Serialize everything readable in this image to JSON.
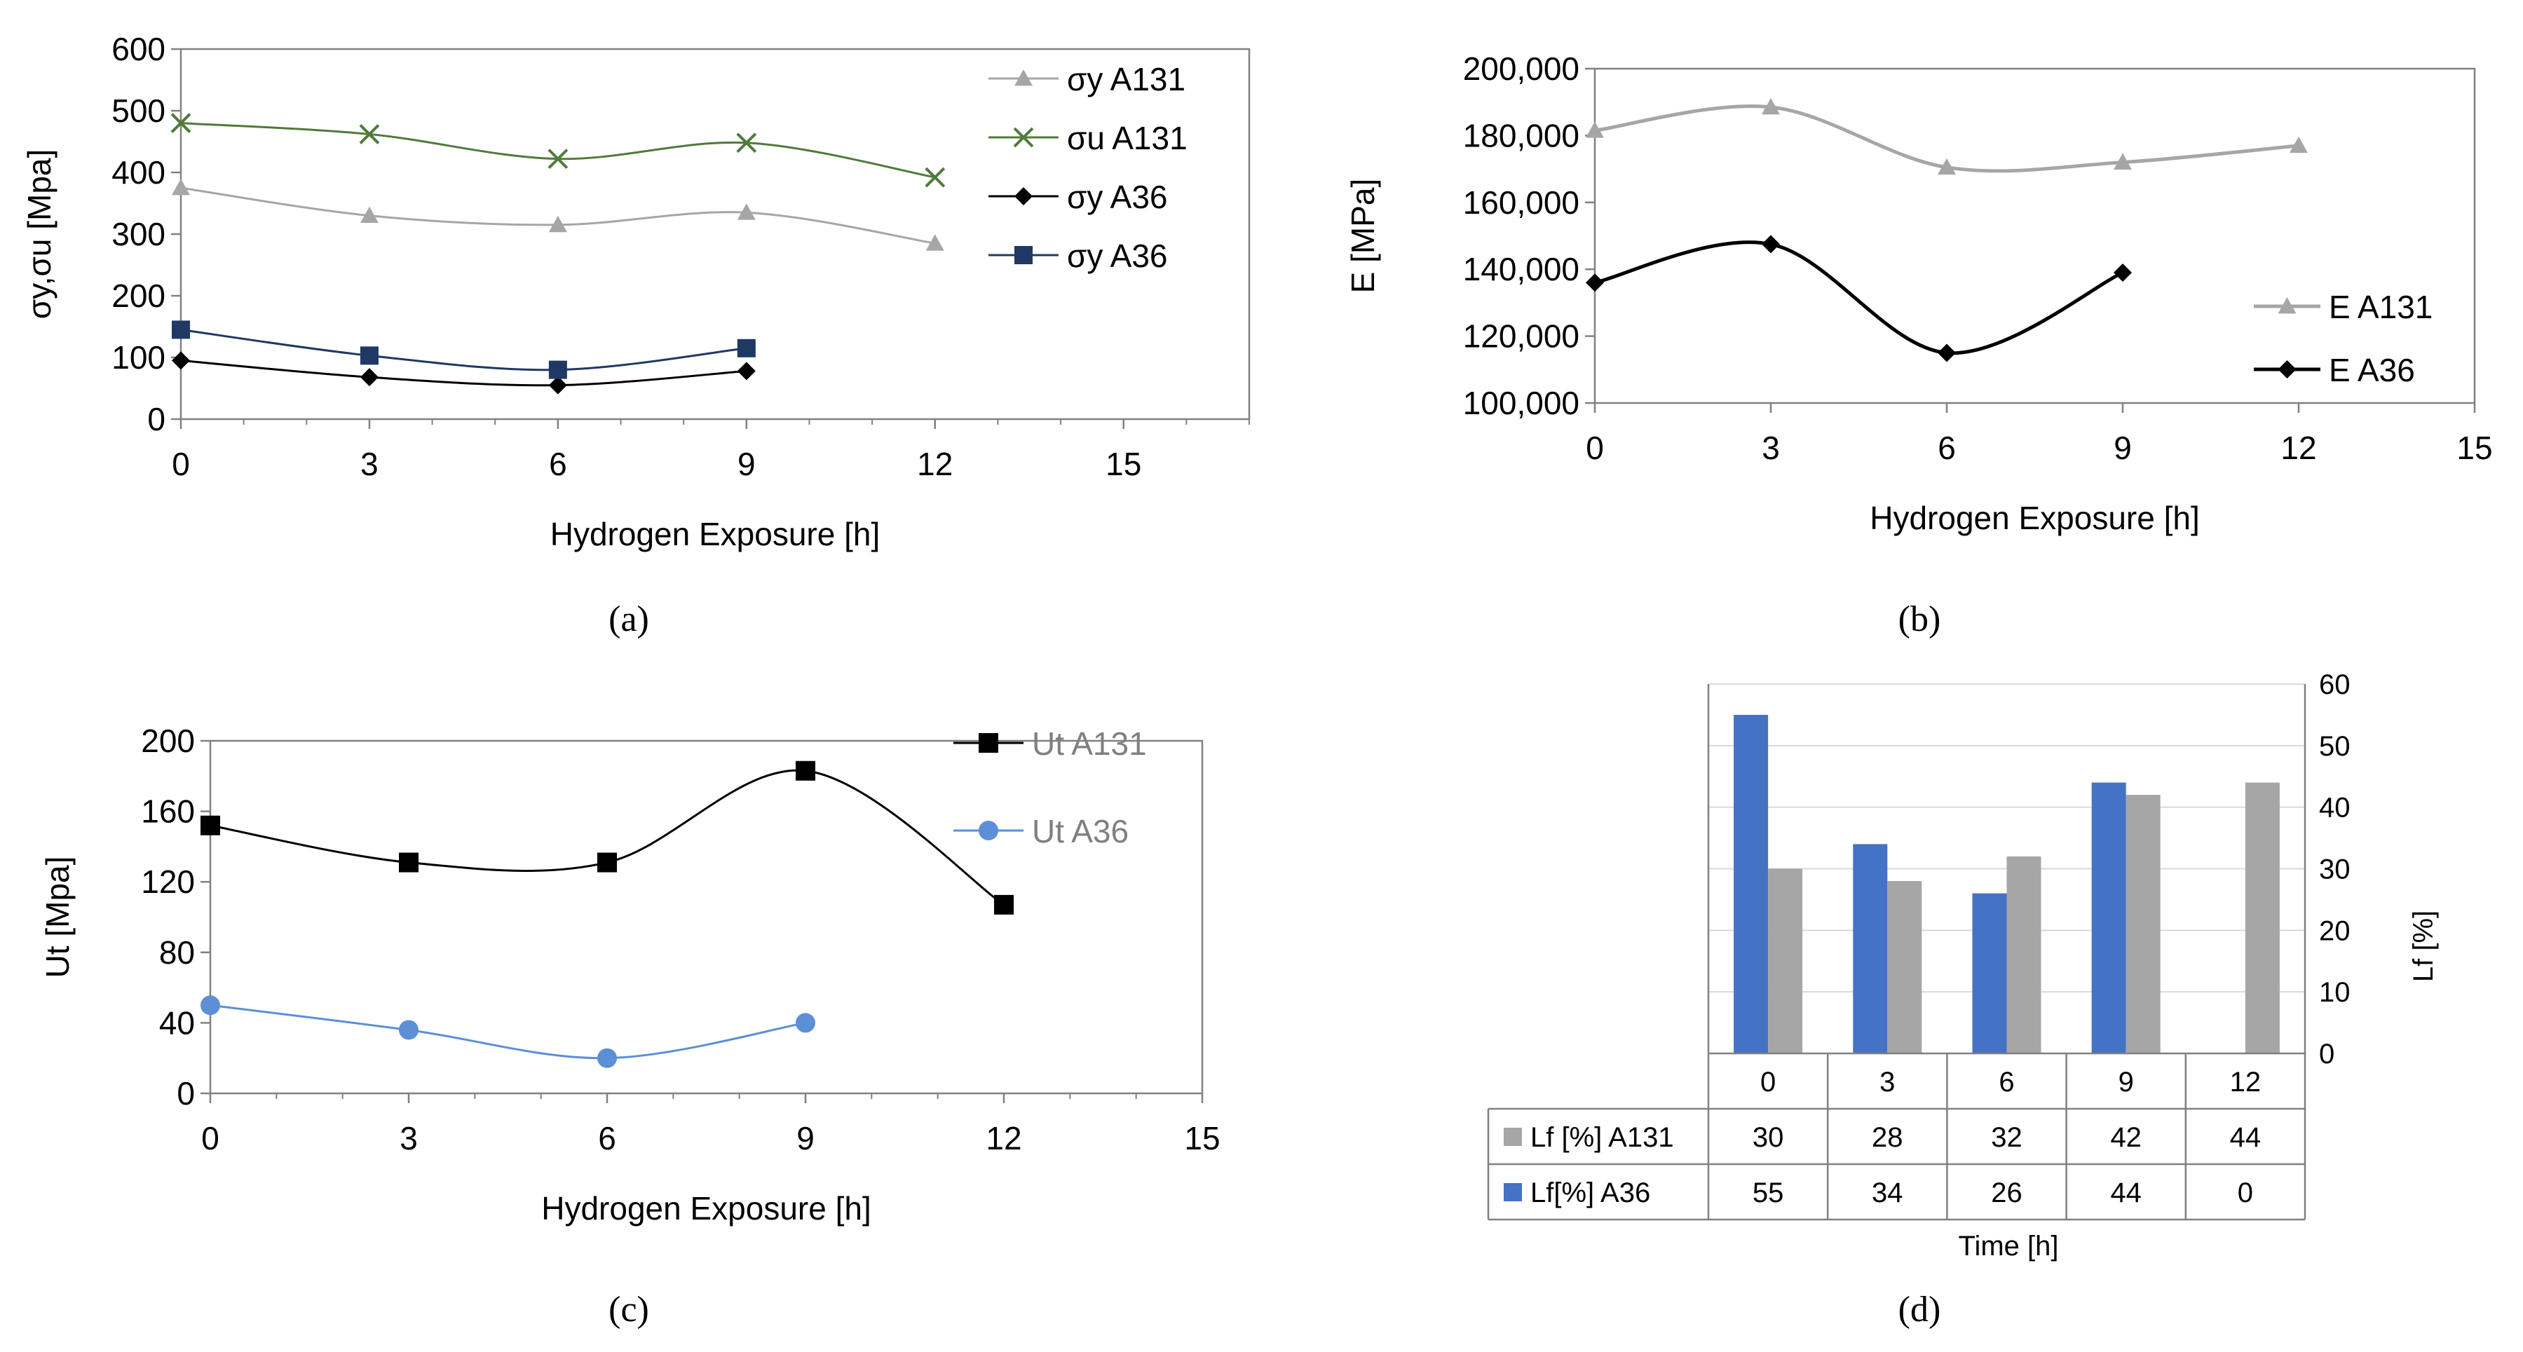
{
  "colors": {
    "light_gray": "#a6a6a6",
    "green": "#507a3a",
    "black": "#000000",
    "navy": "#1f3864",
    "blue": "#4472c4",
    "lblue": "#5b8fd6",
    "axis": "#808080",
    "grid": "#d9d9d9",
    "legend_text": "#808080"
  },
  "panels": {
    "a": "(a)",
    "b": "(b)",
    "c": "(c)",
    "d": "(d)"
  },
  "chart_data": [
    {
      "id": "a",
      "type": "line",
      "title": "",
      "xlabel": "Hydrogen Exposure [h]",
      "ylabel": "σy,σu [Mpa]",
      "xlim": [
        0,
        17
      ],
      "ylim": [
        0,
        600
      ],
      "xticks": [
        0,
        3,
        6,
        9,
        12,
        15
      ],
      "yticks": [
        0,
        100,
        200,
        300,
        400,
        500,
        600
      ],
      "xticklabels": [
        "0",
        "3",
        "6",
        "9",
        "12",
        "15"
      ],
      "yticklabels": [
        "0",
        "100",
        "200",
        "300",
        "400",
        "500",
        "600"
      ],
      "legend_position": "top-right",
      "series": [
        {
          "name": "σy A131",
          "color": "#a6a6a6",
          "marker": "triangle",
          "x": [
            0,
            3,
            6,
            9,
            12
          ],
          "values": [
            375,
            330,
            315,
            335,
            285
          ]
        },
        {
          "name": "σu A131",
          "color": "#507a3a",
          "marker": "x",
          "x": [
            0,
            3,
            6,
            9,
            12
          ],
          "values": [
            480,
            462,
            422,
            448,
            392
          ]
        },
        {
          "name": "σy A36",
          "color": "#000000",
          "marker": "diamond",
          "x": [
            0,
            3,
            6,
            9
          ],
          "values": [
            95,
            68,
            55,
            78
          ]
        },
        {
          "name": "σy A36",
          "color": "#1f3864",
          "marker": "square",
          "x": [
            0,
            3,
            6,
            9
          ],
          "values": [
            145,
            103,
            80,
            115
          ]
        }
      ]
    },
    {
      "id": "b",
      "type": "line",
      "title": "",
      "xlabel": "Hydrogen Exposure [h]",
      "ylabel": "E [MPa]",
      "xlim": [
        0,
        15
      ],
      "ylim": [
        100000,
        200000
      ],
      "xticks": [
        0,
        3,
        6,
        9,
        12,
        15
      ],
      "yticks": [
        100000,
        120000,
        140000,
        160000,
        180000,
        200000
      ],
      "xticklabels": [
        "0",
        "3",
        "6",
        "9",
        "12",
        "15"
      ],
      "yticklabels": [
        "100,000",
        "120,000",
        "140,000",
        "160,000",
        "180,000",
        "200,000"
      ],
      "legend_position": "bottom-right",
      "series": [
        {
          "name": "E A131",
          "color": "#a6a6a6",
          "marker": "triangle",
          "x": [
            0,
            3,
            6,
            9,
            12
          ],
          "values": [
            181500,
            188500,
            170500,
            172000,
            177000
          ]
        },
        {
          "name": "E A36",
          "color": "#000000",
          "marker": "diamond",
          "x": [
            0,
            3,
            6,
            9
          ],
          "values": [
            136000,
            147500,
            115000,
            139000
          ]
        }
      ]
    },
    {
      "id": "c",
      "type": "line",
      "title": "",
      "xlabel": "Hydrogen Exposure [h]",
      "ylabel": "Ut [Mpa]",
      "xlim": [
        0,
        15
      ],
      "ylim": [
        0,
        200
      ],
      "xticks": [
        0,
        3,
        6,
        9,
        12,
        15
      ],
      "yticks": [
        0,
        40,
        80,
        120,
        160,
        200
      ],
      "xticklabels": [
        "0",
        "3",
        "6",
        "9",
        "12",
        "15"
      ],
      "yticklabels": [
        "0",
        "40",
        "80",
        "120",
        "160",
        "200"
      ],
      "legend_position": "top-right",
      "series": [
        {
          "name": "Ut A131",
          "color": "#000000",
          "marker": "square",
          "x": [
            0,
            3,
            6,
            9,
            12
          ],
          "values": [
            152,
            131,
            131,
            183,
            107
          ]
        },
        {
          "name": "Ut A36",
          "color": "#5b8fd6",
          "marker": "circle",
          "x": [
            0,
            3,
            6,
            9
          ],
          "values": [
            50,
            36,
            20,
            40
          ]
        }
      ]
    },
    {
      "id": "d",
      "type": "bar",
      "title": "",
      "xlabel": "Time [h]",
      "ylabel": "Lf [%]",
      "ylim": [
        0,
        60
      ],
      "yticks": [
        0,
        10,
        20,
        30,
        40,
        50,
        60
      ],
      "yticklabels": [
        "0",
        "10",
        "20",
        "30",
        "40",
        "50",
        "60"
      ],
      "categories": [
        "0",
        "3",
        "6",
        "9",
        "12"
      ],
      "series": [
        {
          "name": "Lf[%] A36",
          "color": "#4472c4",
          "values": [
            55,
            34,
            26,
            44,
            0
          ],
          "labels": [
            "55",
            "34",
            "26",
            "44",
            "0"
          ]
        },
        {
          "name": "Lf [%] A131",
          "color": "#a6a6a6",
          "values": [
            30,
            28,
            32,
            42,
            44
          ],
          "labels": [
            "30",
            "28",
            "32",
            "42",
            "44"
          ]
        }
      ]
    }
  ]
}
